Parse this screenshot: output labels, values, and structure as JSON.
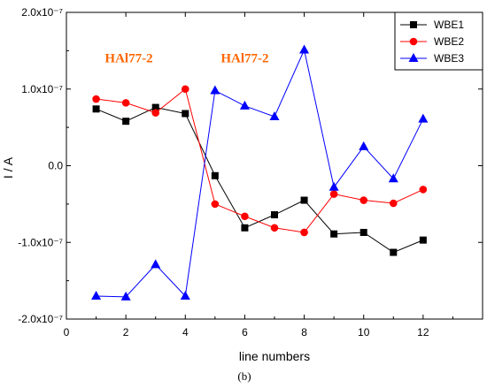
{
  "chart_data": {
    "type": "line",
    "xlabel": "line numbers",
    "ylabel": "I / A",
    "xlim": [
      0,
      14
    ],
    "ylim": [
      -2e-07,
      2e-07
    ],
    "x_ticks": [
      "0",
      "2",
      "4",
      "6",
      "8",
      "10",
      "12"
    ],
    "y_ticks": [
      "-2.0x10⁻⁷",
      "-1.0x10⁻⁷",
      "0.0",
      "1.0x10⁻⁷",
      "2.0x10⁻⁷"
    ],
    "y_tick_values": [
      -2e-07,
      -1e-07,
      0.0,
      1e-07,
      2e-07
    ],
    "x_tick_values": [
      0,
      2,
      4,
      6,
      8,
      10,
      12
    ],
    "x": [
      1,
      2,
      3,
      4,
      5,
      6,
      7,
      8,
      9,
      10,
      11,
      12
    ],
    "series": [
      {
        "name": "WBE1",
        "color": "#000000",
        "marker": "square",
        "values": [
          7.4e-08,
          5.8e-08,
          7.6e-08,
          6.8e-08,
          -1.3e-08,
          -8.1e-08,
          -6.4e-08,
          -4.5e-08,
          -8.9e-08,
          -8.7e-08,
          -1.13e-07,
          -9.7e-08
        ]
      },
      {
        "name": "WBE2",
        "color": "#ff0000",
        "marker": "circle",
        "values": [
          8.7e-08,
          8.2e-08,
          6.9e-08,
          1e-07,
          -5e-08,
          -6.6e-08,
          -8.1e-08,
          -8.7e-08,
          -3.7e-08,
          -4.5e-08,
          -4.9e-08,
          -3.1e-08
        ]
      },
      {
        "name": "WBE3",
        "color": "#0000ff",
        "marker": "triangle",
        "values": [
          -1.7e-07,
          -1.71e-07,
          -1.29e-07,
          -1.7e-07,
          9.8e-08,
          7.8e-08,
          6.4e-08,
          1.51e-07,
          -2.8e-08,
          2.5e-08,
          -1.7e-08,
          6.1e-08
        ]
      }
    ],
    "annotations": [
      {
        "text": "HAl77-2",
        "color": "#ff6600",
        "x": 2.1,
        "y": 1.35e-07
      },
      {
        "text": "HAl77-2",
        "color": "#ff6600",
        "x": 6.0,
        "y": 1.35e-07
      }
    ],
    "legend_position": "top-right",
    "caption": "(b)"
  }
}
